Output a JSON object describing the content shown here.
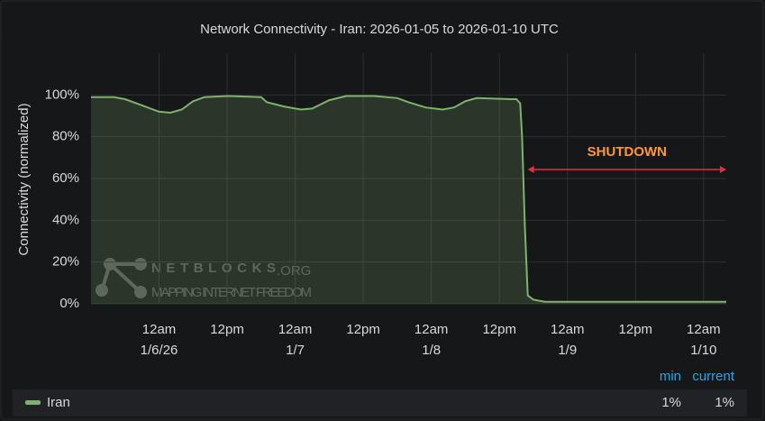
{
  "chart_data": {
    "type": "line",
    "title": "Network Connectivity - Iran: 2026-01-05 to 2026-01-10 UTC",
    "y_label": "Connectivity (normalized)",
    "x": [
      "2026-01-05 12:00",
      "2026-01-05 16:00",
      "2026-01-05 18:00",
      "2026-01-05 21:00",
      "2026-01-06 00:00",
      "2026-01-06 02:00",
      "2026-01-06 04:00",
      "2026-01-06 06:00",
      "2026-01-06 08:00",
      "2026-01-06 12:00",
      "2026-01-06 18:00",
      "2026-01-06 19:00",
      "2026-01-06 22:00",
      "2026-01-07 01:00",
      "2026-01-07 03:00",
      "2026-01-07 06:00",
      "2026-01-07 09:00",
      "2026-01-07 14:00",
      "2026-01-07 18:00",
      "2026-01-07 20:00",
      "2026-01-07 23:00",
      "2026-01-08 02:00",
      "2026-01-08 04:00",
      "2026-01-08 06:00",
      "2026-01-08 08:00",
      "2026-01-08 14:00",
      "2026-01-08 15:00",
      "2026-01-08 15:40",
      "2026-01-08 16:00",
      "2026-01-08 16:30",
      "2026-01-08 17:00",
      "2026-01-08 18:00",
      "2026-01-08 20:00",
      "2026-01-09 12:00",
      "2026-01-10 04:00"
    ],
    "series": [
      {
        "name": "Iran",
        "color": "#7eb26d",
        "values": [
          99,
          99,
          98,
          95,
          92,
          91.5,
          93,
          97,
          99,
          99.5,
          99,
          96.5,
          94.5,
          93,
          93.5,
          97.5,
          99.5,
          99.5,
          98.5,
          96.5,
          94,
          93,
          94,
          97,
          98.5,
          98,
          98,
          96,
          80,
          37,
          4,
          2,
          1,
          1,
          1
        ]
      }
    ],
    "xlim": [
      "2026-01-05 12:00",
      "2026-01-10 04:00"
    ],
    "xticks": [
      {
        "value": "2026-01-06 00:00",
        "label": "12am",
        "date_label": "1/6/26"
      },
      {
        "value": "2026-01-06 12:00",
        "label": "12pm"
      },
      {
        "value": "2026-01-07 00:00",
        "label": "12am",
        "date_label": "1/7"
      },
      {
        "value": "2026-01-07 12:00",
        "label": "12pm"
      },
      {
        "value": "2026-01-08 00:00",
        "label": "12am",
        "date_label": "1/8"
      },
      {
        "value": "2026-01-08 12:00",
        "label": "12pm"
      },
      {
        "value": "2026-01-09 00:00",
        "label": "12am",
        "date_label": "1/9"
      },
      {
        "value": "2026-01-09 12:00",
        "label": "12pm"
      },
      {
        "value": "2026-01-10 00:00",
        "label": "12am",
        "date_label": "1/10"
      }
    ],
    "ylim": [
      0,
      120
    ],
    "yticks": [
      {
        "value": 0,
        "label": "0%"
      },
      {
        "value": 20,
        "label": "20%"
      },
      {
        "value": 40,
        "label": "40%"
      },
      {
        "value": 60,
        "label": "60%"
      },
      {
        "value": 80,
        "label": "80%"
      },
      {
        "value": 100,
        "label": "100%"
      }
    ],
    "grid": true,
    "annotation": {
      "text": "SHUTDOWN",
      "start": "2026-01-08 17:00",
      "end": "2026-01-10 04:00",
      "color": "#e02f44",
      "text_color": "#ff9830"
    },
    "watermark": {
      "name": "NETBLOCKS",
      "suffix": ".ORG",
      "tagline": "MAPPING INTERNET FREEDOM"
    },
    "legend": {
      "columns": [
        "min",
        "current"
      ],
      "values": [
        1,
        1
      ],
      "value_labels": [
        "1%",
        "1%"
      ]
    }
  }
}
